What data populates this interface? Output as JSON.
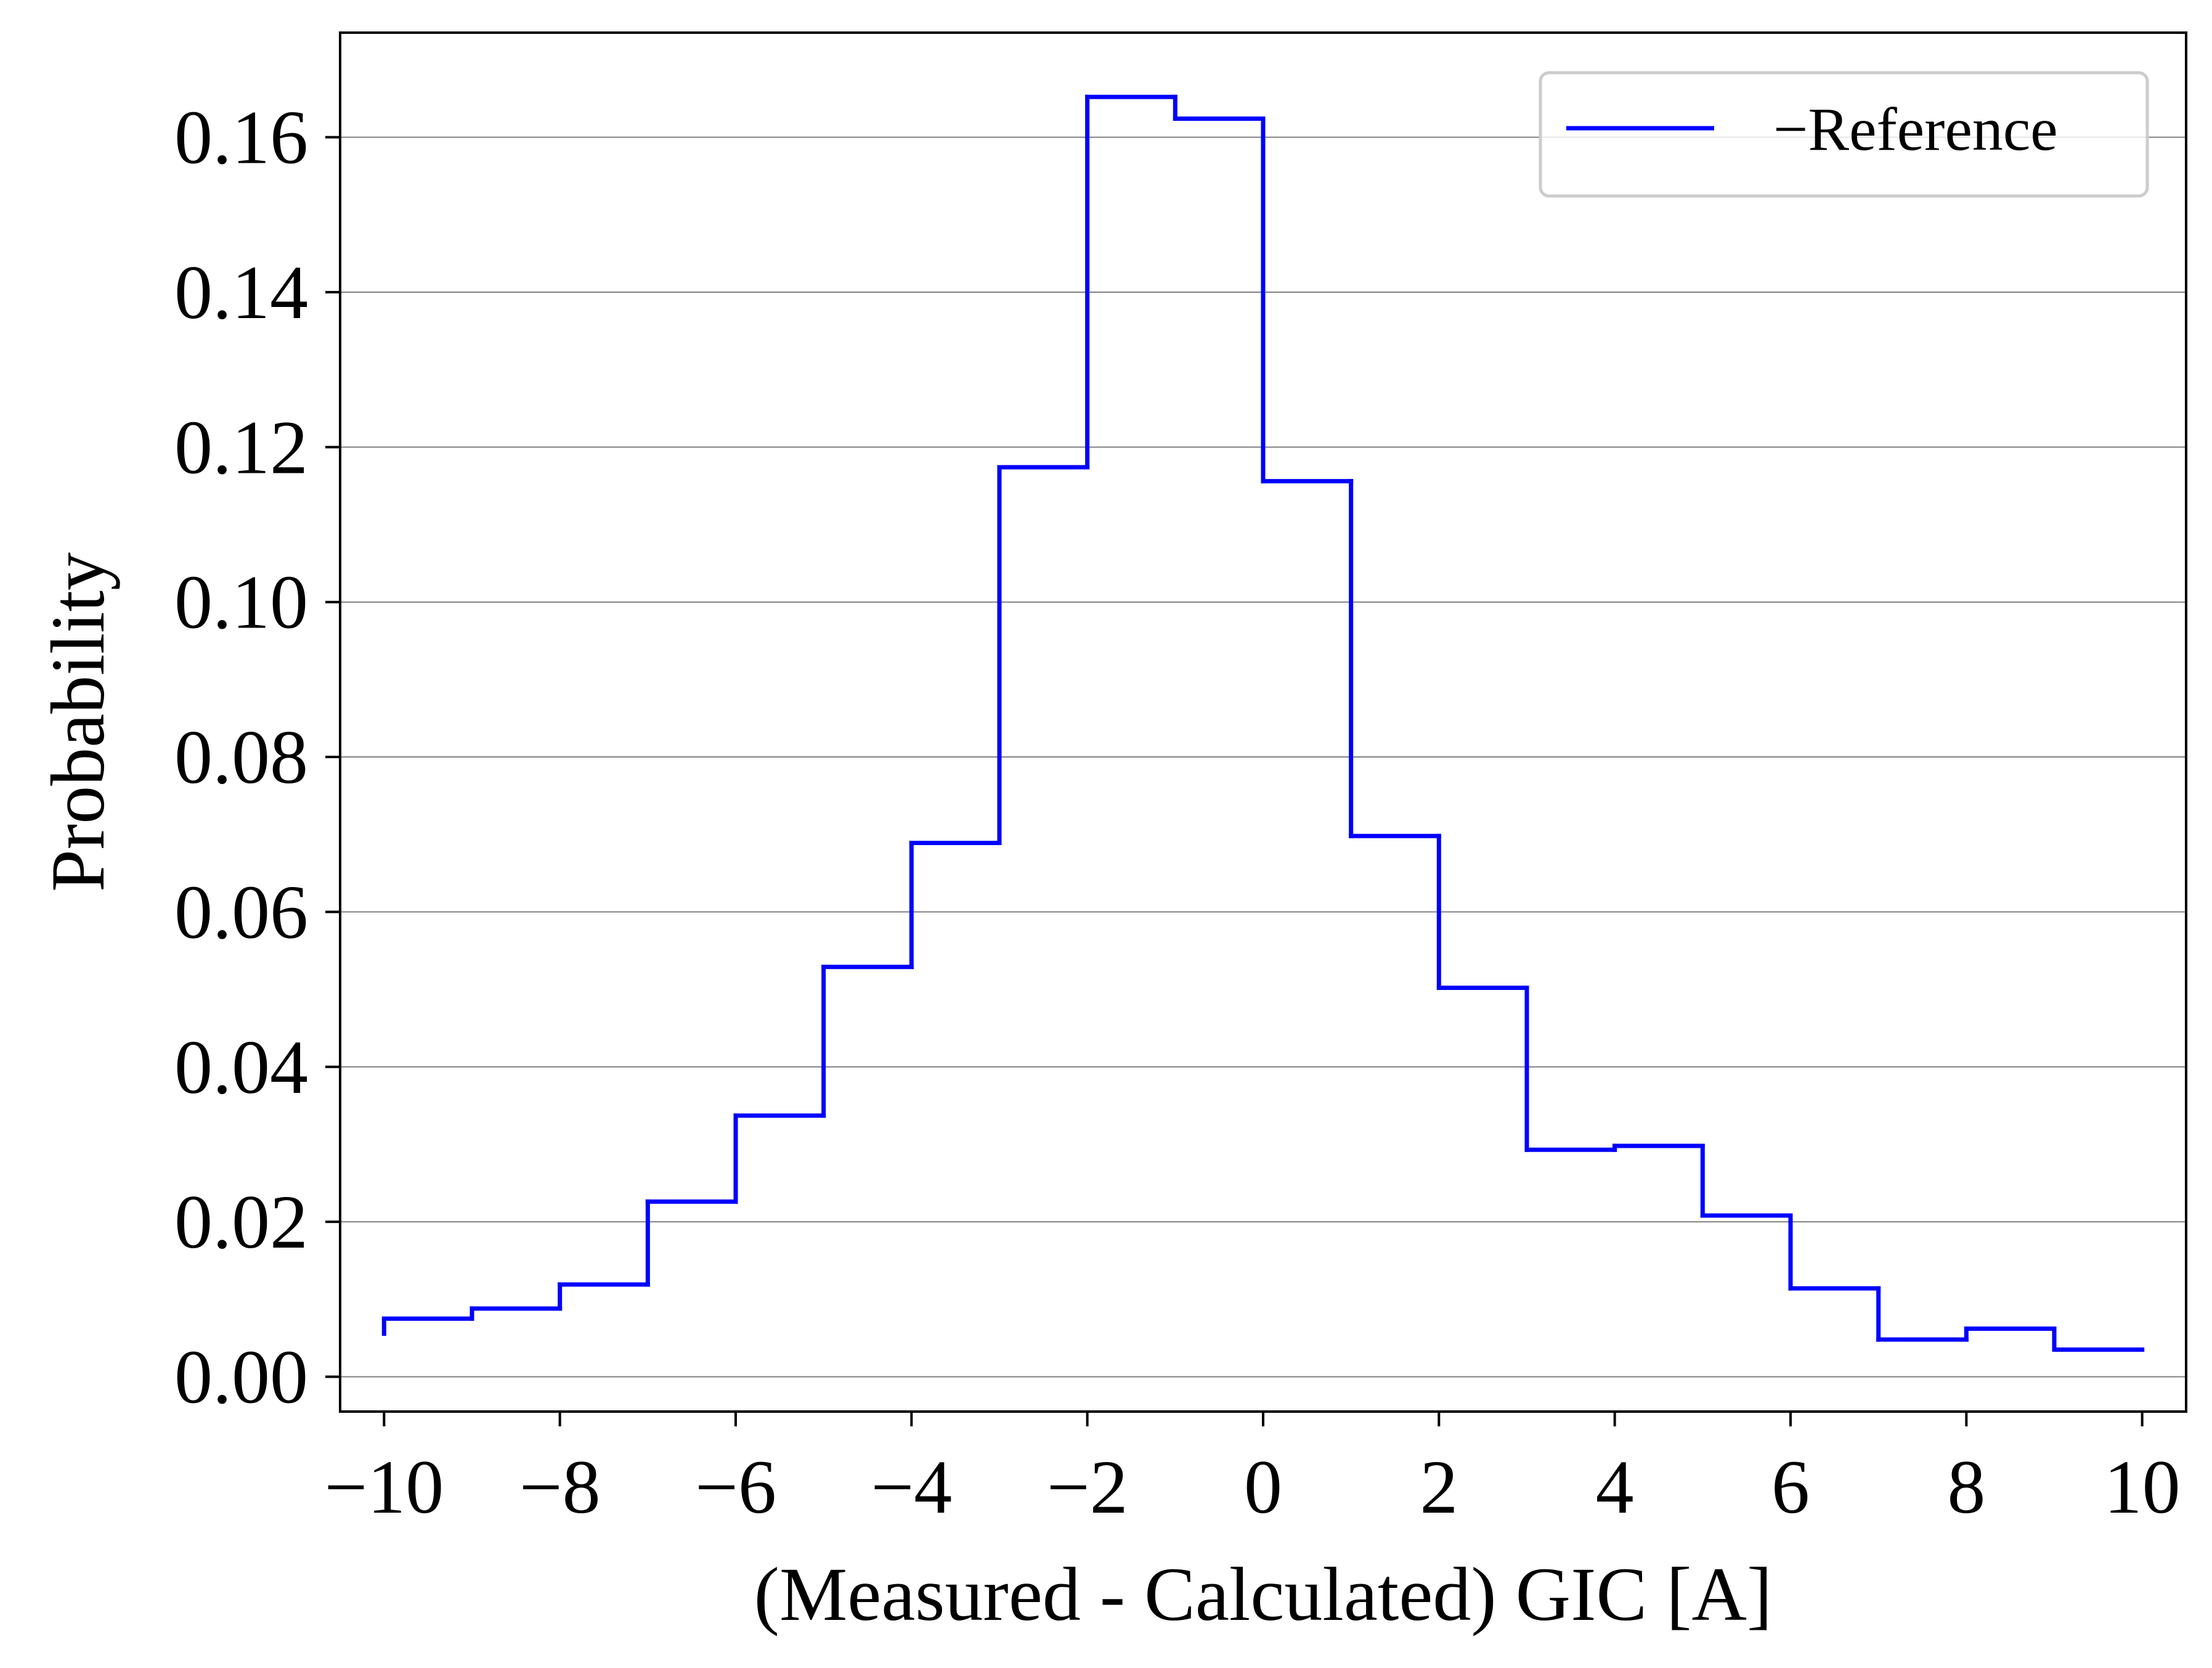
{
  "chart_data": {
    "type": "step",
    "title": "",
    "xlabel": "(Measured - Calculated) GIC [A]",
    "ylabel": "Probability",
    "xlim": [
      -10.5,
      10.5
    ],
    "ylim": [
      -0.0045,
      0.1735
    ],
    "xticks": [
      -10,
      -8,
      -6,
      -4,
      -2,
      0,
      2,
      4,
      6,
      8,
      10
    ],
    "xtick_labels": [
      "−10",
      "−8",
      "−6",
      "−4",
      "−2",
      "0",
      "2",
      "4",
      "6",
      "8",
      "10"
    ],
    "yticks": [
      0.0,
      0.02,
      0.04,
      0.06,
      0.08,
      0.1,
      0.12,
      0.14,
      0.16
    ],
    "ytick_labels": [
      "0.00",
      "0.02",
      "0.04",
      "0.06",
      "0.08",
      "0.10",
      "0.12",
      "0.14",
      "0.16"
    ],
    "grid": "horizontal",
    "legend_position": "top-right",
    "series": [
      {
        "name": "−Reference",
        "color": "#0000ff",
        "bin_edges": [
          -10,
          -9,
          -8,
          -7,
          -6,
          -5,
          -4,
          -3,
          -2,
          -1,
          0,
          1,
          2,
          3,
          4,
          5,
          6,
          7,
          8,
          9,
          10
        ],
        "values": [
          0.0075,
          0.0088,
          0.0119,
          0.0226,
          0.0337,
          0.0529,
          0.0689,
          0.1174,
          0.1652,
          0.1624,
          0.1156,
          0.0698,
          0.0502,
          0.0293,
          0.0298,
          0.0208,
          0.0114,
          0.0048,
          0.0062,
          0.0035
        ]
      }
    ]
  }
}
